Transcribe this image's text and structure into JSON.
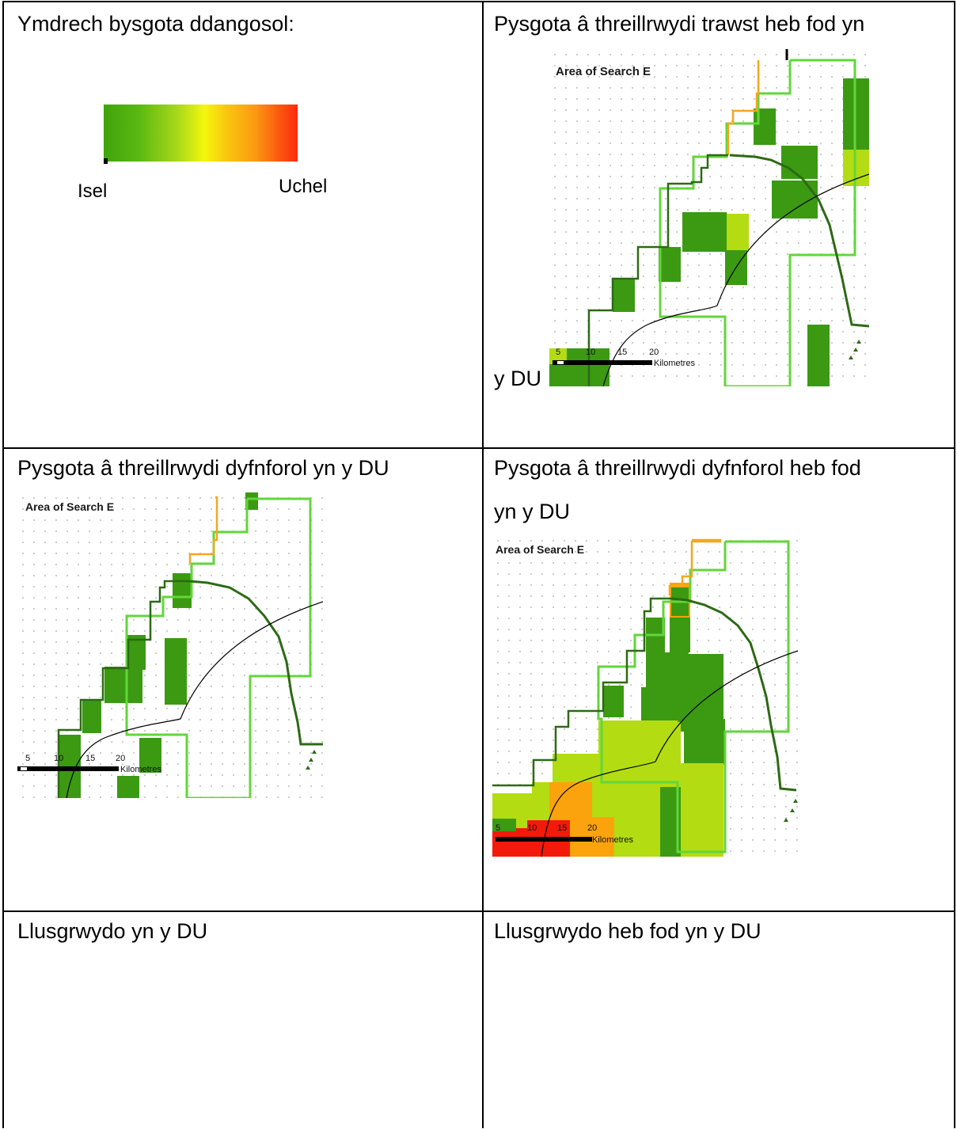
{
  "legend": {
    "title": "Ymdrech bysgota ddangosol:",
    "low_label": "Isel",
    "high_label": "Uchel"
  },
  "cells": {
    "top_right_title_line1": "Pysgota â threillrwydi trawst heb fod yn",
    "top_right_title_line2": "y DU",
    "mid_left_title": "Pysgota â threillrwydi dyfnforol yn y DU",
    "mid_right_title_line1": "Pysgota â threillrwydi dyfnforol heb fod",
    "mid_right_title_line2": "yn y DU",
    "bottom_left_title": "Llusgrwydo yn y DU",
    "bottom_right_title": "Llusgrwydo heb fod yn y DU"
  },
  "map": {
    "area_label": "Area of Search E",
    "scale_ticks": [
      "5",
      "10",
      "15",
      "20"
    ],
    "scale_unit": "Kilometres"
  },
  "colors": {
    "effort_dark_green": "#3b9a12",
    "effort_light_green": "#b3dc12",
    "effort_orange": "#fba30c",
    "effort_red": "#f31a0c",
    "boundary_light_green": "#62d63a",
    "boundary_dark_green": "#2d6a14",
    "boundary_orange": "#f5a623"
  }
}
